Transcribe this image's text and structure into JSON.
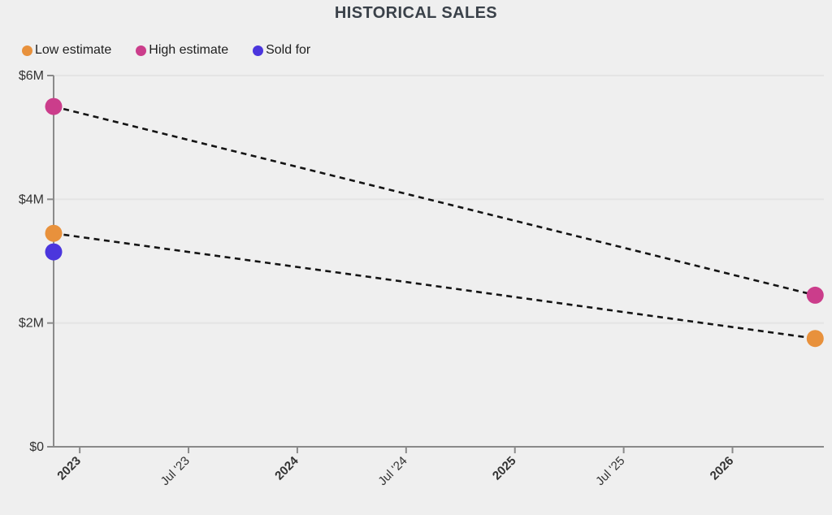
{
  "title": "HISTORICAL SALES",
  "legend": {
    "items": [
      {
        "label": "Low estimate",
        "color": "#e8913c"
      },
      {
        "label": "High estimate",
        "color": "#cb3d8b"
      },
      {
        "label": "Sold for",
        "color": "#4b36dd"
      }
    ]
  },
  "colors": {
    "background": "#efefef",
    "axis": "#8a8a8a",
    "gridline": "#e4e4e4",
    "dashed_line": "#141414",
    "tick_text": "#333333",
    "title_text": "#3a4149"
  },
  "chart_data": {
    "type": "scatter",
    "title": "HISTORICAL SALES",
    "xlabel": "",
    "ylabel": "",
    "xlim": [
      2022.88,
      2026.42
    ],
    "ylim": [
      0,
      6000000
    ],
    "grid": true,
    "legend_position": "top-left",
    "x_ticks": [
      {
        "value": 2023.0,
        "label": "2023",
        "bold": true
      },
      {
        "value": 2023.5,
        "label": "Jul '23",
        "bold": false
      },
      {
        "value": 2024.0,
        "label": "2024",
        "bold": true
      },
      {
        "value": 2024.5,
        "label": "Jul '24",
        "bold": false
      },
      {
        "value": 2025.0,
        "label": "2025",
        "bold": true
      },
      {
        "value": 2025.5,
        "label": "Jul '25",
        "bold": false
      },
      {
        "value": 2026.0,
        "label": "2026",
        "bold": true
      }
    ],
    "y_ticks": [
      {
        "value": 0,
        "label": "$0"
      },
      {
        "value": 2000000,
        "label": "$2M"
      },
      {
        "value": 4000000,
        "label": "$4M"
      },
      {
        "value": 6000000,
        "label": "$6M"
      }
    ],
    "series": [
      {
        "name": "Low estimate",
        "color": "#e8913c",
        "line": "dashed",
        "points": [
          {
            "x": 2022.88,
            "value": 3450000
          },
          {
            "x": 2026.38,
            "value": 1750000
          }
        ]
      },
      {
        "name": "High estimate",
        "color": "#cb3d8b",
        "line": "dashed",
        "points": [
          {
            "x": 2022.88,
            "value": 5500000
          },
          {
            "x": 2026.38,
            "value": 2450000
          }
        ]
      },
      {
        "name": "Sold for",
        "color": "#4b36dd",
        "line": "none",
        "points": [
          {
            "x": 2022.88,
            "value": 3150000
          }
        ]
      }
    ]
  }
}
